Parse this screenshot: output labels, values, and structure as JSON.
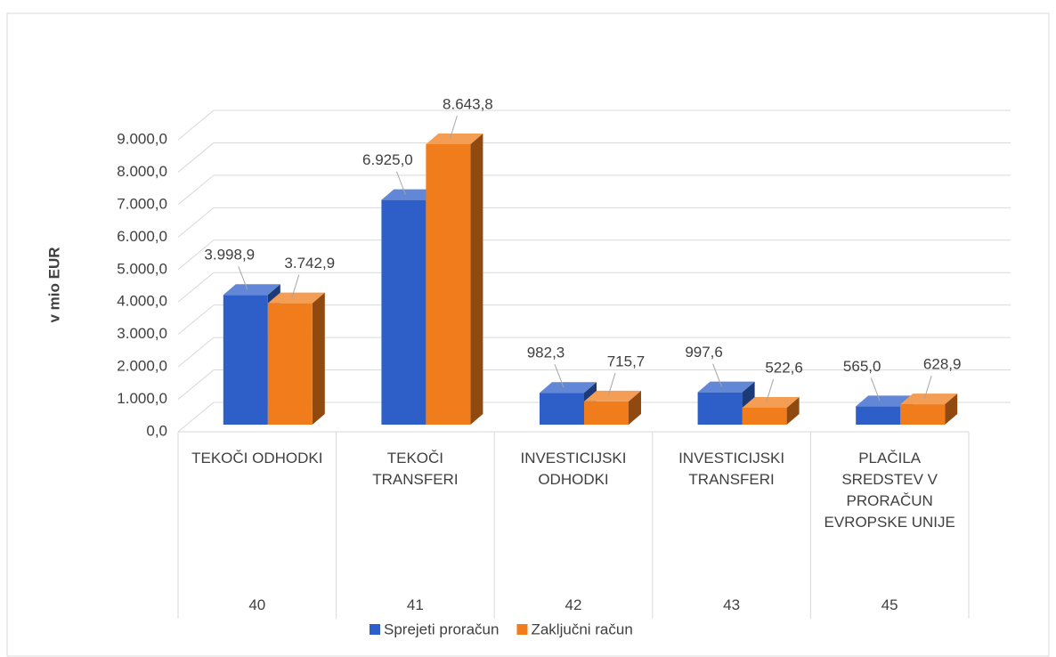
{
  "chart_data": {
    "type": "bar3d",
    "y_label": "v mio EUR",
    "categories": [
      "TEKOČI ODHODKI",
      "TEKOČI TRANSFERI",
      "INVESTICIJSKI ODHODKI",
      "INVESTICIJSKI TRANSFERI",
      "PLAČILA SREDSTEV V PRORAČUN EVROPSKE UNIJE"
    ],
    "category_codes": [
      "40",
      "41",
      "42",
      "43",
      "45"
    ],
    "series": [
      {
        "name": "Sprejeti proračun",
        "color": "#2e5fc8",
        "values": [
          3998.9,
          6925.0,
          982.3,
          997.6,
          565.0
        ],
        "value_labels": [
          "3.998,9",
          "6.925,0",
          "982,3",
          "997,6",
          "565,0"
        ]
      },
      {
        "name": "Zaključni račun",
        "color": "#f07c1b",
        "values": [
          3742.9,
          8643.8,
          715.7,
          522.6,
          628.9
        ],
        "value_labels": [
          "3.742,9",
          "8.643,8",
          "715,7",
          "522,6",
          "628,9"
        ]
      }
    ],
    "ylim": [
      0,
      9000
    ],
    "yticks": [
      {
        "value": 0,
        "label": "0,0"
      },
      {
        "value": 1000,
        "label": "1.000,0"
      },
      {
        "value": 2000,
        "label": "2.000,0"
      },
      {
        "value": 3000,
        "label": "3.000,0"
      },
      {
        "value": 4000,
        "label": "4.000,0"
      },
      {
        "value": 5000,
        "label": "5.000,0"
      },
      {
        "value": 6000,
        "label": "6.000,0"
      },
      {
        "value": 7000,
        "label": "7.000,0"
      },
      {
        "value": 8000,
        "label": "8.000,0"
      },
      {
        "value": 9000,
        "label": "9.000,0"
      }
    ],
    "grid": true,
    "legend": "bottom"
  }
}
